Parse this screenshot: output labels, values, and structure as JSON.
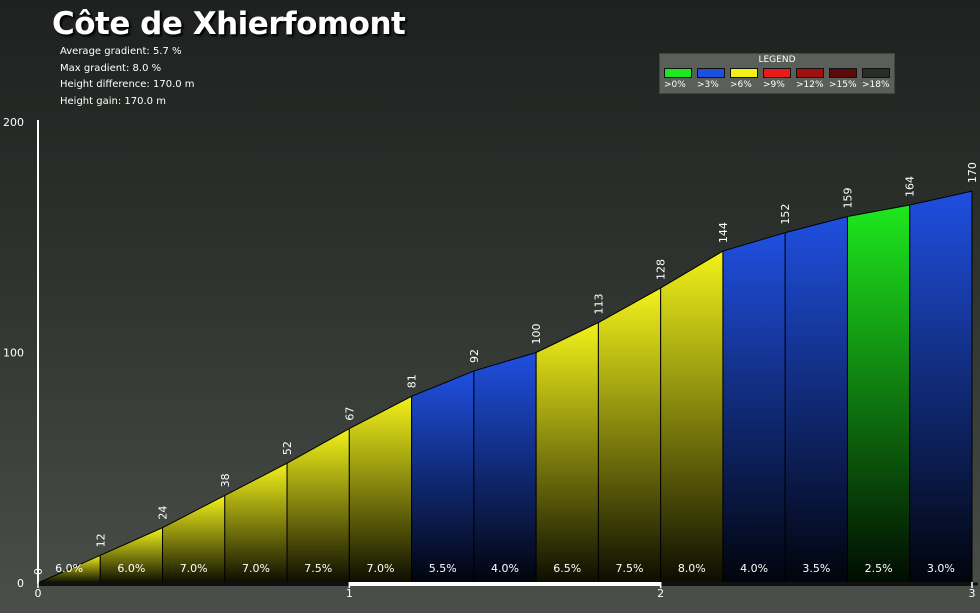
{
  "title": "Côte de Xhierfomont",
  "stats": [
    {
      "label": "Average gradient:",
      "value": "5.7 %"
    },
    {
      "label": "Max gradient:",
      "value": "8.0 %"
    },
    {
      "label": "Height difference:",
      "value": "170.0 m"
    },
    {
      "label": "Height gain:",
      "value": "170.0 m"
    }
  ],
  "legend": {
    "title": "LEGEND",
    "items": [
      {
        "label": ">0%",
        "color": "#1ee81e"
      },
      {
        "label": ">3%",
        "color": "#1f4fe0"
      },
      {
        "label": ">6%",
        "color": "#f2f21a"
      },
      {
        "label": ">9%",
        "color": "#e81a1a"
      },
      {
        "label": ">12%",
        "color": "#a01010"
      },
      {
        "label": ">15%",
        "color": "#5a0a0a"
      },
      {
        "label": ">18%",
        "color": "#2a2d2a"
      }
    ]
  },
  "chart_data": {
    "type": "area",
    "x": [
      0,
      0.2,
      0.4,
      0.6,
      0.8,
      1.0,
      1.2,
      1.4,
      1.6,
      1.8,
      2.0,
      2.2,
      2.4,
      2.6,
      2.8,
      3.0
    ],
    "elevations": [
      0,
      12,
      24,
      38,
      52,
      67,
      81,
      92,
      100,
      113,
      128,
      144,
      152,
      159,
      164,
      170
    ],
    "segment_gradients": [
      "6.0%",
      "6.0%",
      "7.0%",
      "7.0%",
      "7.5%",
      "7.0%",
      "5.5%",
      "4.0%",
      "6.5%",
      "7.5%",
      "8.0%",
      "4.0%",
      "3.5%",
      "2.5%",
      "3.0%"
    ],
    "xlim": [
      0,
      3
    ],
    "ylim": [
      0,
      200
    ],
    "x_ticks": [
      "0",
      "1",
      "2",
      "3"
    ],
    "y_ticks": [
      "0",
      "100",
      "200"
    ]
  }
}
